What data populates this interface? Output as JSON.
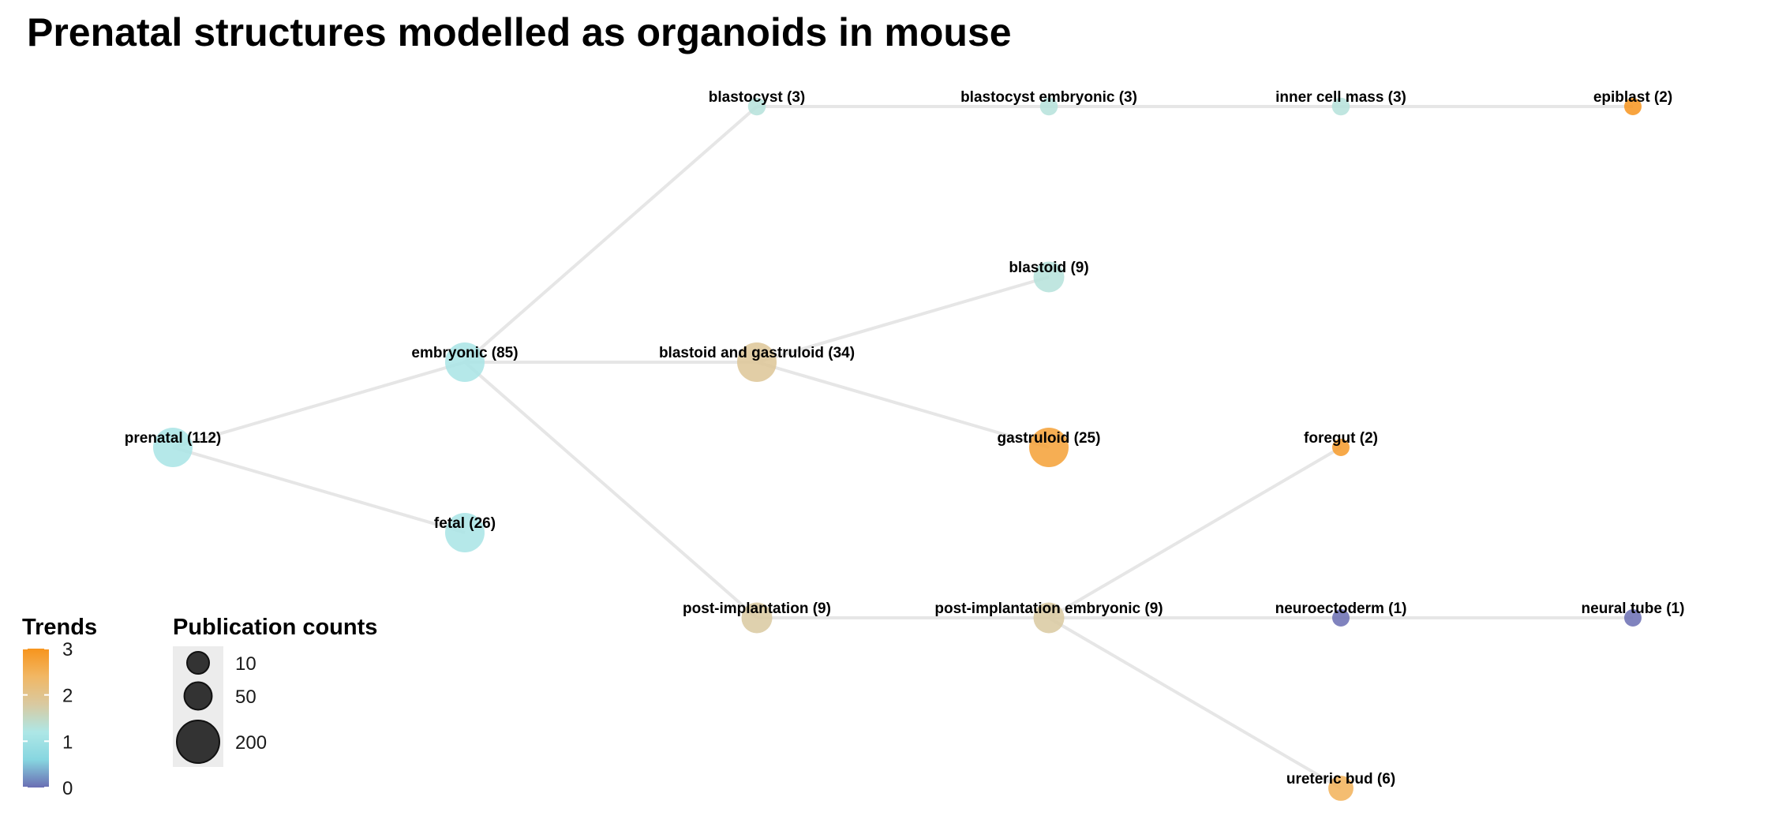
{
  "title": "Prenatal structures modelled as organoids in mouse",
  "colors": {
    "edge": "#e6e6e6",
    "trend_gradient": [
      "#6a6db3",
      "#87d6e0",
      "#aee7e6",
      "#d9c9a0",
      "#f1b764",
      "#f7941d"
    ]
  },
  "nodes": [
    {
      "id": "prenatal",
      "label": "prenatal (112)",
      "count": 112,
      "trend": 1.1,
      "depth": 0,
      "row": 4
    },
    {
      "id": "embryonic",
      "label": "embryonic (85)",
      "count": 85,
      "trend": 1.1,
      "depth": 1,
      "row": 3
    },
    {
      "id": "fetal",
      "label": "fetal (26)",
      "count": 26,
      "trend": 1.1,
      "depth": 1,
      "row": 5
    },
    {
      "id": "blastocyst",
      "label": "blastocyst (3)",
      "count": 3,
      "trend": 1.3,
      "depth": 2,
      "row": 0
    },
    {
      "id": "blastoid_gastruloid",
      "label": "blastoid and gastruloid (34)",
      "count": 34,
      "trend": 1.9,
      "depth": 2,
      "row": 3
    },
    {
      "id": "post_implantation",
      "label": "post-implantation (9)",
      "count": 9,
      "trend": 1.8,
      "depth": 2,
      "row": 6
    },
    {
      "id": "blastocyst_embryonic",
      "label": "blastocyst embryonic (3)",
      "count": 3,
      "trend": 1.3,
      "depth": 3,
      "row": 0
    },
    {
      "id": "blastoid",
      "label": "blastoid (9)",
      "count": 9,
      "trend": 1.3,
      "depth": 3,
      "row": 2
    },
    {
      "id": "gastruloid",
      "label": "gastruloid (25)",
      "count": 25,
      "trend": 2.8,
      "depth": 3,
      "row": 4
    },
    {
      "id": "post_implantation_embryonic",
      "label": "post-implantation embryonic (9)",
      "count": 9,
      "trend": 1.8,
      "depth": 3,
      "row": 6
    },
    {
      "id": "inner_cell_mass",
      "label": "inner cell mass (3)",
      "count": 3,
      "trend": 1.3,
      "depth": 4,
      "row": 0
    },
    {
      "id": "foregut",
      "label": "foregut (2)",
      "count": 2,
      "trend": 2.9,
      "depth": 4,
      "row": 4
    },
    {
      "id": "neuroectoderm",
      "label": "neuroectoderm (1)",
      "count": 1,
      "trend": 0.0,
      "depth": 4,
      "row": 6
    },
    {
      "id": "ureteric_bud",
      "label": "ureteric bud (6)",
      "count": 6,
      "trend": 2.5,
      "depth": 4,
      "row": 8
    },
    {
      "id": "epiblast",
      "label": "epiblast (2)",
      "count": 2,
      "trend": 3.0,
      "depth": 5,
      "row": 0
    },
    {
      "id": "neural_tube",
      "label": "neural tube (1)",
      "count": 1,
      "trend": 0.0,
      "depth": 5,
      "row": 6
    }
  ],
  "edges": [
    [
      "prenatal",
      "embryonic"
    ],
    [
      "prenatal",
      "fetal"
    ],
    [
      "embryonic",
      "blastocyst"
    ],
    [
      "embryonic",
      "blastoid_gastruloid"
    ],
    [
      "embryonic",
      "post_implantation"
    ],
    [
      "blastocyst",
      "blastocyst_embryonic"
    ],
    [
      "blastocyst_embryonic",
      "inner_cell_mass"
    ],
    [
      "inner_cell_mass",
      "epiblast"
    ],
    [
      "blastoid_gastruloid",
      "blastoid"
    ],
    [
      "blastoid_gastruloid",
      "gastruloid"
    ],
    [
      "post_implantation",
      "post_implantation_embryonic"
    ],
    [
      "post_implantation_embryonic",
      "foregut"
    ],
    [
      "post_implantation_embryonic",
      "neuroectoderm"
    ],
    [
      "post_implantation_embryonic",
      "ureteric_bud"
    ],
    [
      "neuroectoderm",
      "neural_tube"
    ]
  ],
  "legend": {
    "trends": {
      "title": "Trends",
      "range": [
        0,
        3
      ],
      "ticks": [
        "3",
        "2",
        "1",
        "0"
      ]
    },
    "publication_counts": {
      "title": "Publication counts",
      "items": [
        {
          "label": "10",
          "count": 10
        },
        {
          "label": "50",
          "count": 50
        },
        {
          "label": "200",
          "count": 200
        }
      ]
    }
  }
}
